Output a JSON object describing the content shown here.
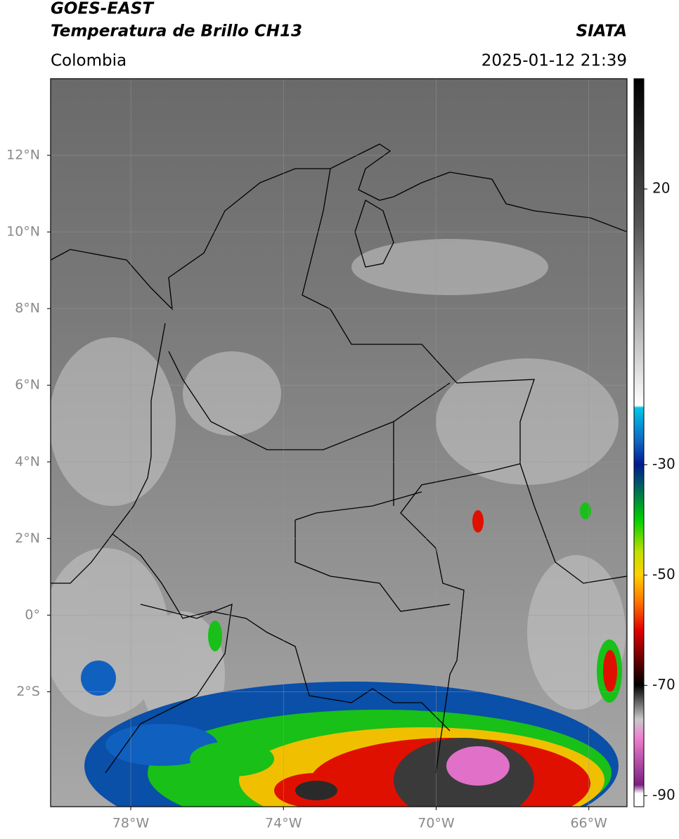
{
  "header": {
    "title": "GOES-EAST",
    "subtitle": "Temperatura de Brillo CH13",
    "source": "SIATA",
    "region": "Colombia",
    "datetime": "2025-01-12 21:39"
  },
  "map": {
    "lon_lim": [
      -80.1,
      -65
    ],
    "lat_lim": [
      -5,
      14
    ],
    "lon_ticks": [
      {
        "value": -78,
        "label": "78°W"
      },
      {
        "value": -74,
        "label": "74°W"
      },
      {
        "value": -70,
        "label": "70°W"
      },
      {
        "value": -66,
        "label": "66°W"
      }
    ],
    "lat_ticks": [
      {
        "value": 12,
        "label": "12°N"
      },
      {
        "value": 10,
        "label": "10°N"
      },
      {
        "value": 8,
        "label": "8°N"
      },
      {
        "value": 6,
        "label": "6°N"
      },
      {
        "value": 4,
        "label": "4°N"
      },
      {
        "value": 2,
        "label": "2°N"
      },
      {
        "value": 0,
        "label": "0°"
      },
      {
        "value": -2,
        "label": "2°S"
      }
    ]
  },
  "colorbar": {
    "lim": [
      -92,
      40
    ],
    "ticks": [
      20,
      -30,
      -50,
      -70,
      -90
    ]
  }
}
